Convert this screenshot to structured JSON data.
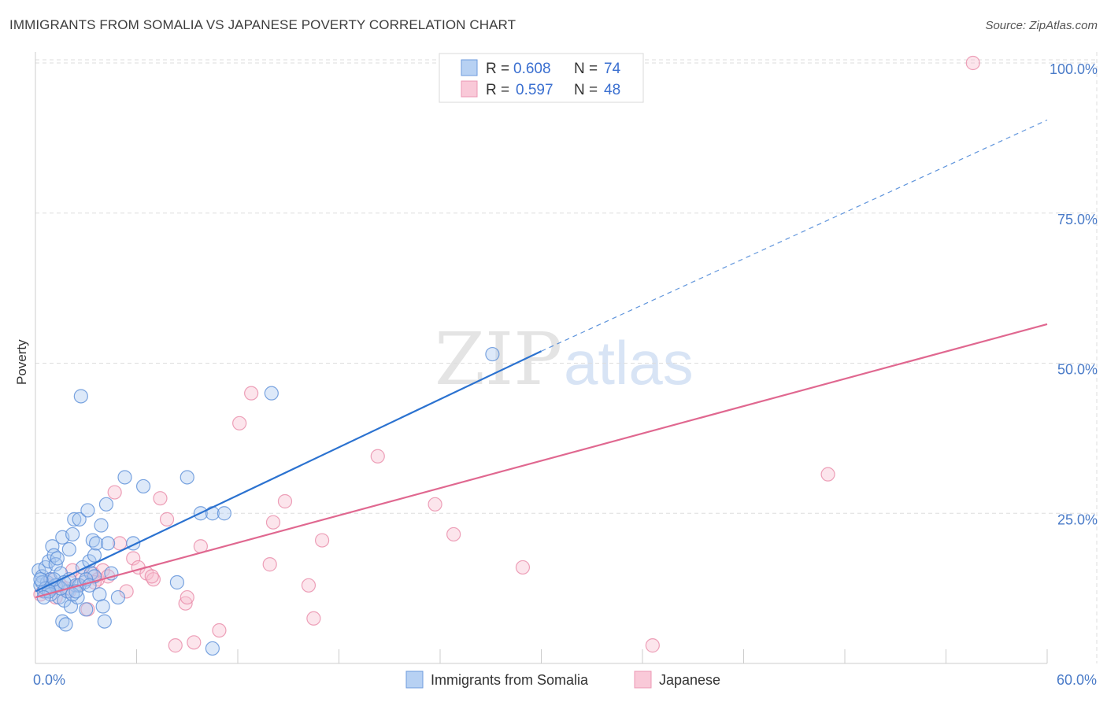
{
  "title": "IMMIGRANTS FROM SOMALIA VS JAPANESE POVERTY CORRELATION CHART",
  "source": "Source: ZipAtlas.com",
  "watermark": {
    "zip": "ZIP",
    "atlas": "atlas"
  },
  "colors": {
    "blue_fill": "#a9c8f0",
    "blue_stroke": "#5b8fd8",
    "blue_line": "#2b72d0",
    "pink_fill": "#f7bfd0",
    "pink_stroke": "#e88aa8",
    "pink_line": "#e06890",
    "tick_text": "#4a7bc8",
    "grid": "#dddddd"
  },
  "legend": {
    "rows": [
      {
        "r_label": "R =",
        "r_value": "0.608",
        "n_label": "N =",
        "n_value": "74"
      },
      {
        "r_label": "R =",
        "r_value": "0.597",
        "n_label": "N =",
        "n_value": "48"
      }
    ]
  },
  "chart_data": {
    "type": "scatter",
    "ylabel": "Poverty",
    "xlim": [
      0,
      60
    ],
    "ylim": [
      0,
      105
    ],
    "x_tick_labels": [
      {
        "x": 0,
        "label": "0.0%"
      },
      {
        "x": 60,
        "label": "60.0%"
      }
    ],
    "y_tick_labels": [
      {
        "y": 25,
        "label": "25.0%"
      },
      {
        "y": 50,
        "label": "50.0%"
      },
      {
        "y": 75,
        "label": "75.0%"
      },
      {
        "y": 100,
        "label": "100.0%"
      }
    ],
    "grid": true,
    "legend_placement": "top-center",
    "series": [
      {
        "name": "Immigrants from Somalia",
        "color": "blue",
        "R": 0.608,
        "N": 74,
        "trend": {
          "x0": 0,
          "y0": 12.0,
          "x1": 30.0,
          "y1": 52.0,
          "dashed_to_x": 60,
          "dashed_to_y": 90.5
        },
        "points": [
          [
            0.2,
            15.5
          ],
          [
            0.3,
            13
          ],
          [
            0.4,
            14.5
          ],
          [
            0.5,
            12
          ],
          [
            0.6,
            16
          ],
          [
            0.7,
            13.5
          ],
          [
            0.8,
            17
          ],
          [
            0.9,
            14
          ],
          [
            1.0,
            19.5
          ],
          [
            1.0,
            12.5
          ],
          [
            1.1,
            18
          ],
          [
            1.2,
            16.5
          ],
          [
            1.3,
            13
          ],
          [
            1.3,
            17.5
          ],
          [
            1.4,
            11
          ],
          [
            1.5,
            15
          ],
          [
            1.6,
            7
          ],
          [
            1.6,
            21
          ],
          [
            1.7,
            10.5
          ],
          [
            1.8,
            6.5
          ],
          [
            1.9,
            12
          ],
          [
            2.0,
            19
          ],
          [
            2.0,
            14
          ],
          [
            2.1,
            9.5
          ],
          [
            2.2,
            21.5
          ],
          [
            2.3,
            24
          ],
          [
            2.4,
            13
          ],
          [
            2.5,
            11
          ],
          [
            2.6,
            24
          ],
          [
            2.7,
            44.5
          ],
          [
            2.8,
            16
          ],
          [
            2.9,
            13.5
          ],
          [
            3.0,
            9
          ],
          [
            3.1,
            25.5
          ],
          [
            3.2,
            17
          ],
          [
            3.3,
            15
          ],
          [
            3.4,
            20.5
          ],
          [
            3.5,
            18
          ],
          [
            3.5,
            14.5
          ],
          [
            3.6,
            20
          ],
          [
            3.8,
            11.5
          ],
          [
            3.9,
            23
          ],
          [
            4.0,
            9.5
          ],
          [
            4.1,
            7
          ],
          [
            4.2,
            26.5
          ],
          [
            4.3,
            20
          ],
          [
            4.5,
            15
          ],
          [
            4.9,
            11
          ],
          [
            5.3,
            31
          ],
          [
            5.8,
            20
          ],
          [
            6.4,
            29.5
          ],
          [
            8.4,
            13.5
          ],
          [
            9.0,
            31
          ],
          [
            9.8,
            25
          ],
          [
            10.5,
            2.5
          ],
          [
            10.5,
            25
          ],
          [
            11.2,
            25
          ],
          [
            14.0,
            45
          ],
          [
            27.1,
            51.5
          ],
          [
            0.4,
            13.5
          ],
          [
            0.6,
            12.5
          ],
          [
            1.2,
            13
          ],
          [
            0.9,
            11.5
          ],
          [
            2.6,
            13
          ],
          [
            1.5,
            12.5
          ],
          [
            3.0,
            14
          ],
          [
            0.3,
            14
          ],
          [
            0.8,
            12
          ],
          [
            1.1,
            14
          ],
          [
            2.2,
            11.5
          ],
          [
            0.5,
            11
          ],
          [
            1.7,
            13.5
          ],
          [
            2.4,
            12
          ],
          [
            3.2,
            13
          ]
        ]
      },
      {
        "name": "Japanese",
        "color": "pink",
        "R": 0.597,
        "N": 48,
        "trend": {
          "x0": 0,
          "y0": 11.0,
          "x1": 60,
          "y1": 56.5
        },
        "points": [
          [
            0.3,
            11.5
          ],
          [
            0.6,
            12
          ],
          [
            0.9,
            14
          ],
          [
            1.2,
            11
          ],
          [
            1.5,
            13
          ],
          [
            1.8,
            12.5
          ],
          [
            2.2,
            15.5
          ],
          [
            2.5,
            13
          ],
          [
            2.8,
            14.5
          ],
          [
            3.1,
            9
          ],
          [
            3.4,
            15
          ],
          [
            3.7,
            14
          ],
          [
            4.0,
            15.5
          ],
          [
            4.3,
            14.5
          ],
          [
            4.7,
            28.5
          ],
          [
            5.0,
            20
          ],
          [
            5.4,
            12
          ],
          [
            5.8,
            17.5
          ],
          [
            6.1,
            16
          ],
          [
            6.6,
            15
          ],
          [
            7.0,
            14
          ],
          [
            7.4,
            27.5
          ],
          [
            7.8,
            24
          ],
          [
            8.3,
            3
          ],
          [
            8.9,
            10
          ],
          [
            9.0,
            11
          ],
          [
            9.4,
            3.5
          ],
          [
            9.8,
            19.5
          ],
          [
            10.9,
            5.5
          ],
          [
            12.1,
            40
          ],
          [
            12.8,
            45
          ],
          [
            13.9,
            16.5
          ],
          [
            14.1,
            23.5
          ],
          [
            14.8,
            27
          ],
          [
            16.2,
            13
          ],
          [
            16.5,
            7.5
          ],
          [
            17.0,
            20.5
          ],
          [
            20.3,
            34.5
          ],
          [
            23.7,
            26.5
          ],
          [
            24.8,
            21.5
          ],
          [
            28.9,
            16
          ],
          [
            36.6,
            3
          ],
          [
            47.0,
            31.5
          ],
          [
            55.6,
            100
          ],
          [
            0.8,
            13
          ],
          [
            2.0,
            12
          ],
          [
            3.5,
            13.5
          ],
          [
            6.9,
            14.5
          ]
        ]
      }
    ]
  },
  "bottom_legend": [
    "Immigrants from Somalia",
    "Japanese"
  ]
}
